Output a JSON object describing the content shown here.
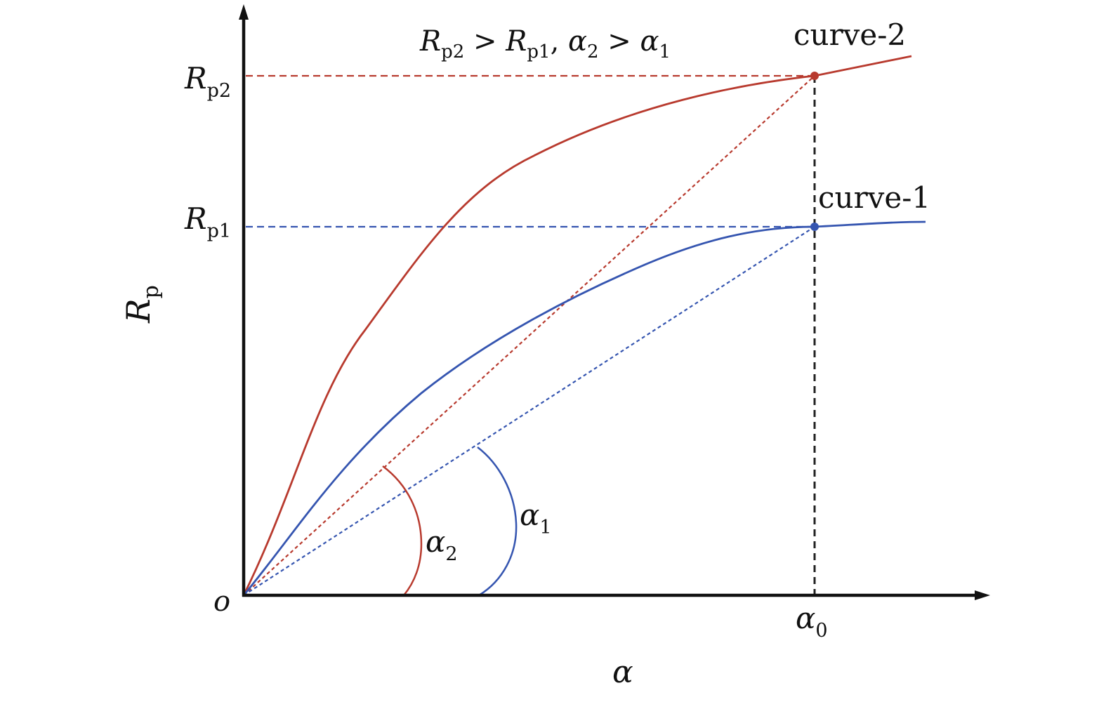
{
  "colors": {
    "axis": "#111111",
    "curve_2": "#b83a2e",
    "curve_1": "#3555b0",
    "guide": "#222222"
  },
  "labels": {
    "relation": {
      "r1": "R",
      "s1": "p2",
      "op1": " > ",
      "r2": "R",
      "s2": "p1",
      "sep": ", ",
      "a1": "α",
      "as1": "2",
      "op2": " > ",
      "a2": "α",
      "as2": "1"
    },
    "curve_2": "curve-2",
    "curve_1": "curve-1",
    "rp2": {
      "main": "R",
      "sub": "p2"
    },
    "rp1": {
      "main": "R",
      "sub": "p1"
    },
    "y_axis": {
      "main": "R",
      "sub": "p"
    },
    "x_axis": "α",
    "origin": "o",
    "alpha0": {
      "main": "α",
      "sub": "0"
    },
    "alpha1": {
      "main": "α",
      "sub": "1"
    },
    "alpha2": {
      "main": "α",
      "sub": "2"
    }
  },
  "chart_data": {
    "type": "line",
    "xlabel": "α",
    "ylabel": "Rp",
    "series": [
      {
        "name": "curve-2",
        "x": [
          0,
          0.05,
          0.1,
          0.15,
          0.2,
          0.25,
          0.3,
          0.38,
          0.48,
          0.6,
          0.75,
          0.88,
          1.0,
          1.17
        ],
        "y": [
          0,
          0.12,
          0.22,
          0.32,
          0.42,
          0.5,
          0.57,
          0.66,
          0.74,
          0.81,
          0.87,
          0.91,
          0.94,
          0.98
        ]
      },
      {
        "name": "curve-1",
        "x": [
          0,
          0.1,
          0.2,
          0.3,
          0.4,
          0.5,
          0.6,
          0.7,
          0.8,
          0.9,
          1.0,
          1.1,
          1.19
        ],
        "y": [
          0,
          0.13,
          0.26,
          0.37,
          0.47,
          0.55,
          0.62,
          0.68,
          0.74,
          0.78,
          0.8,
          0.81,
          0.81
        ]
      }
    ],
    "reference": {
      "alpha0": 1.0,
      "Rp1": 0.8,
      "Rp2": 0.94
    }
  }
}
